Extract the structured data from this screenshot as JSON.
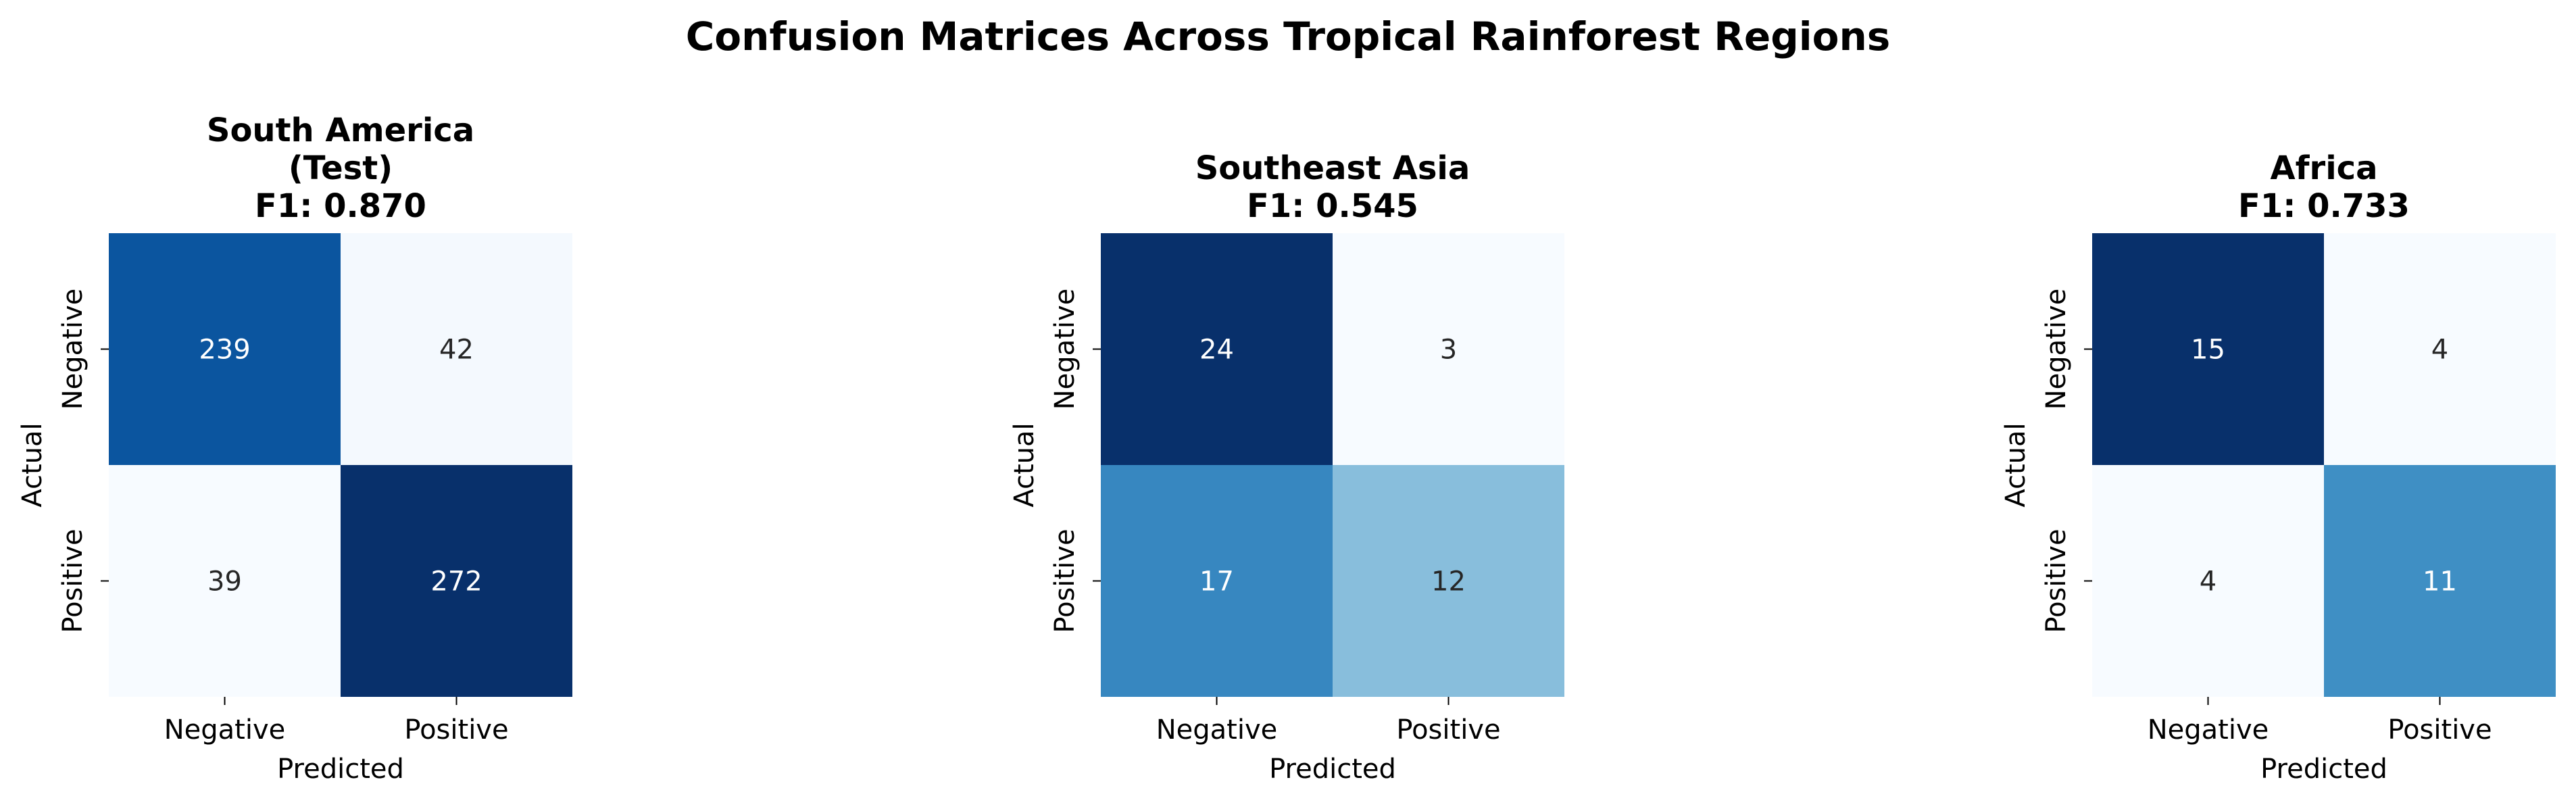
{
  "figure": {
    "title": "Confusion Matrices Across Tropical Rainforest Regions"
  },
  "chart_data": [
    {
      "type": "heatmap",
      "title": [
        "South America",
        "(Test)",
        "F1: 0.870"
      ],
      "xlabel": "Predicted",
      "ylabel": "Actual",
      "x_categories": [
        "Negative",
        "Positive"
      ],
      "y_categories": [
        "Negative",
        "Positive"
      ],
      "values": [
        [
          239,
          42
        ],
        [
          39,
          272
        ]
      ],
      "colormap": "Blues",
      "colorbar": false
    },
    {
      "type": "heatmap",
      "title": [
        "Southeast Asia",
        "F1: 0.545"
      ],
      "xlabel": "Predicted",
      "ylabel": "Actual",
      "x_categories": [
        "Negative",
        "Positive"
      ],
      "y_categories": [
        "Negative",
        "Positive"
      ],
      "values": [
        [
          24,
          3
        ],
        [
          17,
          12
        ]
      ],
      "colormap": "Blues",
      "colorbar": false
    },
    {
      "type": "heatmap",
      "title": [
        "Africa",
        "F1: 0.733"
      ],
      "xlabel": "Predicted",
      "ylabel": "Actual",
      "x_categories": [
        "Negative",
        "Positive"
      ],
      "y_categories": [
        "Negative",
        "Positive"
      ],
      "values": [
        [
          15,
          4
        ],
        [
          4,
          11
        ]
      ],
      "colormap": "Blues",
      "colorbar": false
    }
  ]
}
